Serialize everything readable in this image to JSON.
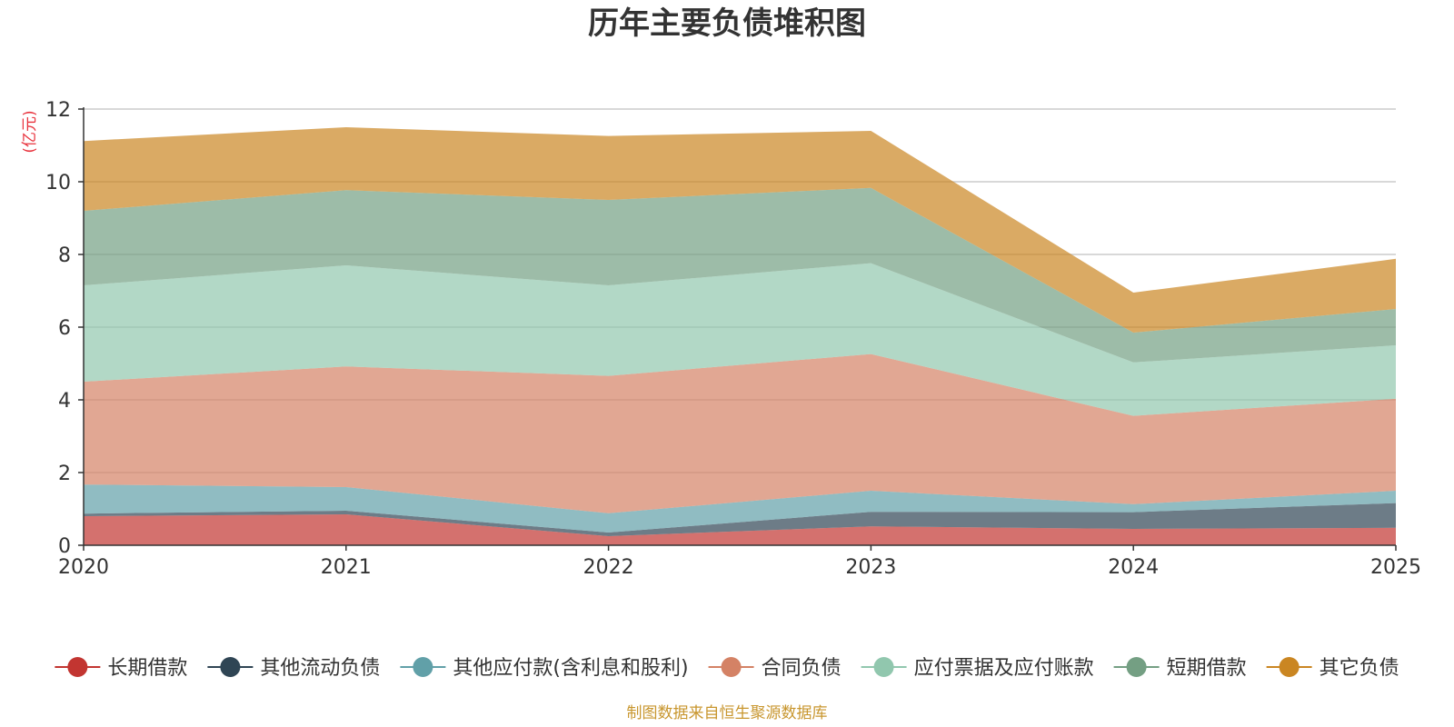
{
  "chart_data": {
    "type": "area",
    "stacked": true,
    "title": "历年主要负债堆积图",
    "ylabel": "(亿元)",
    "xlabel": "",
    "ylim": [
      0,
      12
    ],
    "yticks": [
      0,
      2,
      4,
      6,
      8,
      10,
      12
    ],
    "categories": [
      "2020",
      "2021",
      "2022",
      "2023",
      "2024",
      "2025"
    ],
    "grid": true,
    "legend_position": "bottom",
    "series": [
      {
        "name": "长期借款",
        "color": "#c23531",
        "values": [
          0.8,
          0.85,
          0.25,
          0.52,
          0.45,
          0.48
        ]
      },
      {
        "name": "其他流动负债",
        "color": "#2f4554",
        "values": [
          0.07,
          0.1,
          0.1,
          0.4,
          0.46,
          0.68
        ]
      },
      {
        "name": "其他应付款(含利息和股利)",
        "color": "#61a0a8",
        "values": [
          0.8,
          0.65,
          0.53,
          0.58,
          0.22,
          0.34
        ]
      },
      {
        "name": "合同负债",
        "color": "#d48265",
        "values": [
          2.83,
          3.32,
          3.78,
          3.76,
          2.43,
          2.53
        ]
      },
      {
        "name": "应付票据及应付账款",
        "color": "#91c7ae",
        "values": [
          2.65,
          2.78,
          2.49,
          2.5,
          1.47,
          1.47
        ]
      },
      {
        "name": "短期借款",
        "color": "#749f83",
        "values": [
          2.05,
          2.07,
          2.35,
          2.07,
          0.82,
          1.0
        ]
      },
      {
        "name": "其它负债",
        "color": "#ca8622",
        "values": [
          1.92,
          1.73,
          1.76,
          1.57,
          1.1,
          1.38
        ]
      }
    ]
  },
  "source_note": "制图数据来自恒生聚源数据库"
}
